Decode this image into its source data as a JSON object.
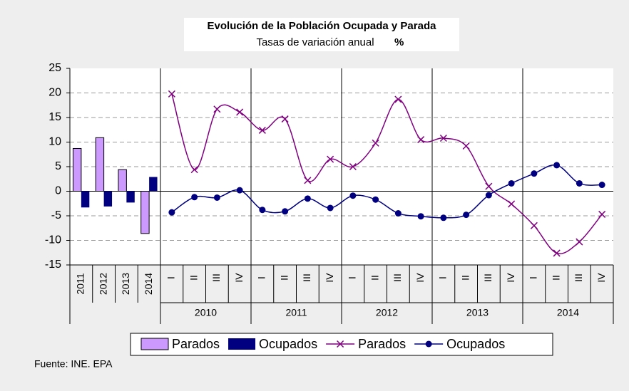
{
  "chart_data": {
    "type": "bar_line_combo",
    "title": "Evolución de la Población Ocupada y Parada",
    "subtitle": "Tasas de variación anual",
    "subtitle_unit": "%",
    "annotation": "Fuente: INE. EPA",
    "bar_categories": [
      "2011",
      "2012",
      "2013",
      "2014"
    ],
    "quarter_groups": [
      {
        "name": "2010",
        "quarters": [
          "I",
          "II",
          "III",
          "IV"
        ]
      },
      {
        "name": "2011",
        "quarters": [
          "I",
          "II",
          "III",
          "IV"
        ]
      },
      {
        "name": "2012",
        "quarters": [
          "I",
          "II",
          "III",
          "IV"
        ]
      },
      {
        "name": "2013",
        "quarters": [
          "I",
          "II",
          "III",
          "IV"
        ]
      },
      {
        "name": "2014",
        "quarters": [
          "I",
          "II",
          "III",
          "IV"
        ]
      }
    ],
    "bar_series": [
      {
        "name": "Parados",
        "color": "#cc99ff",
        "values": [
          8.7,
          10.9,
          4.4,
          -8.6
        ]
      },
      {
        "name": "Ocupados",
        "color": "#000080",
        "values": [
          -3.3,
          -3.1,
          -2.3,
          2.9
        ]
      }
    ],
    "line_series": [
      {
        "name": "Parados",
        "color": "#800080",
        "marker": "x",
        "values": [
          19.8,
          4.4,
          16.7,
          16.1,
          12.4,
          14.7,
          2.2,
          6.5,
          5.0,
          9.8,
          18.7,
          10.5,
          10.8,
          9.2,
          1.0,
          -2.6,
          -7.0,
          -12.6,
          -10.3,
          -4.7
        ]
      },
      {
        "name": "Ocupados",
        "color": "#000080",
        "marker": "circle",
        "values": [
          -4.3,
          -1.2,
          -1.3,
          0.2,
          -3.8,
          -4.1,
          -1.5,
          -3.4,
          -0.9,
          -1.7,
          -4.5,
          -5.1,
          -5.4,
          -4.8,
          -0.8,
          1.6,
          3.6,
          5.3,
          1.6,
          1.3
        ]
      }
    ],
    "ylim": [
      -15,
      25
    ],
    "yticks": [
      -15,
      -10,
      -5,
      0,
      5,
      10,
      15,
      20,
      25
    ],
    "grid": true,
    "smooth": true,
    "legend": "bottom"
  }
}
